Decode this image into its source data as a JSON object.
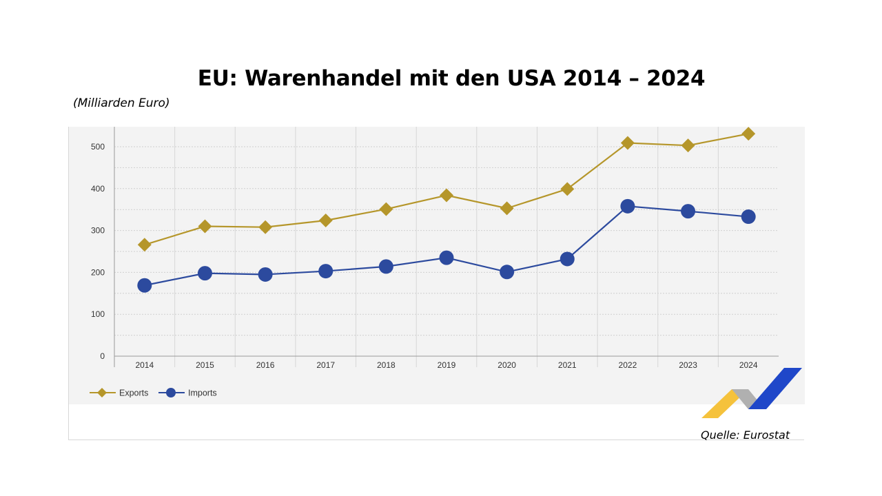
{
  "chart_data": {
    "type": "line",
    "title": "EU: Warenhandel mit den USA 2014 – 2024",
    "ylabel": "(Milliarden Euro)",
    "xlabel": "",
    "source": "Quelle: Eurostat",
    "categories": [
      "2014",
      "2015",
      "2016",
      "2017",
      "2018",
      "2019",
      "2020",
      "2021",
      "2022",
      "2023",
      "2024"
    ],
    "ylim": [
      0,
      550
    ],
    "yticks": [
      "0",
      "100",
      "200",
      "300",
      "400",
      "500"
    ],
    "grid": true,
    "legend_position": "bottom-left",
    "series": [
      {
        "name": "Exports",
        "marker": "diamond",
        "color": "#b5962a",
        "values": [
          266,
          310,
          308,
          324,
          351,
          384,
          353,
          399,
          509,
          503,
          531
        ]
      },
      {
        "name": "Imports",
        "marker": "circle",
        "color": "#2c4a9e",
        "values": [
          169,
          198,
          195,
          203,
          214,
          235,
          201,
          232,
          358,
          346,
          333
        ]
      }
    ]
  },
  "logo": {
    "colors": [
      "#f5c23c",
      "#b0b0b0",
      "#1f47c9"
    ]
  }
}
